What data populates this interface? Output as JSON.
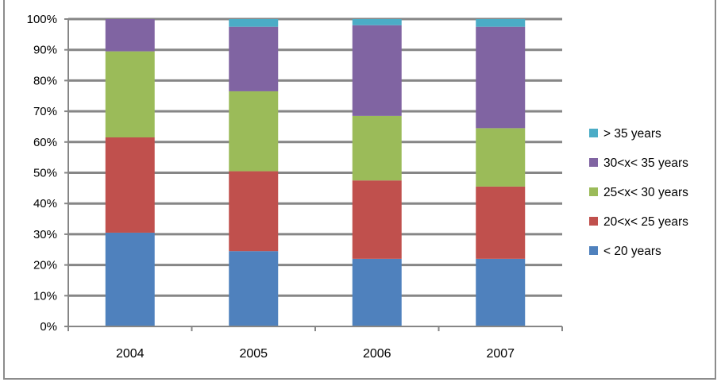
{
  "chart_data": {
    "type": "bar",
    "stacked": true,
    "categories": [
      "2004",
      "2005",
      "2006",
      "2007"
    ],
    "series": [
      {
        "name": "< 20 years",
        "color": "#4f81bd",
        "values": [
          30.5,
          24.5,
          22.0,
          22.0
        ]
      },
      {
        "name": "20<x< 25 years",
        "color": "#c0504d",
        "values": [
          31.0,
          26.0,
          25.5,
          23.5
        ]
      },
      {
        "name": "25<x< 30 years",
        "color": "#9bbb59",
        "values": [
          28.0,
          26.0,
          21.0,
          19.0
        ]
      },
      {
        "name": "30<x< 35 years",
        "color": "#8064a2",
        "values": [
          10.5,
          21.0,
          29.5,
          33.0
        ]
      },
      {
        "name": "> 35 years",
        "color": "#4bacc6",
        "values": [
          0.0,
          2.5,
          2.0,
          2.5
        ]
      }
    ],
    "y_ticks": [
      "0%",
      "10%",
      "20%",
      "30%",
      "40%",
      "50%",
      "60%",
      "70%",
      "80%",
      "90%",
      "100%"
    ],
    "ylim": [
      0,
      100
    ],
    "ylabel": "",
    "xlabel": "",
    "grid": true,
    "legend_position": "right",
    "legend_order": [
      "> 35 years",
      "30<x< 35 years",
      "25<x< 30 years",
      "20<x< 25 years",
      "< 20 years"
    ]
  }
}
